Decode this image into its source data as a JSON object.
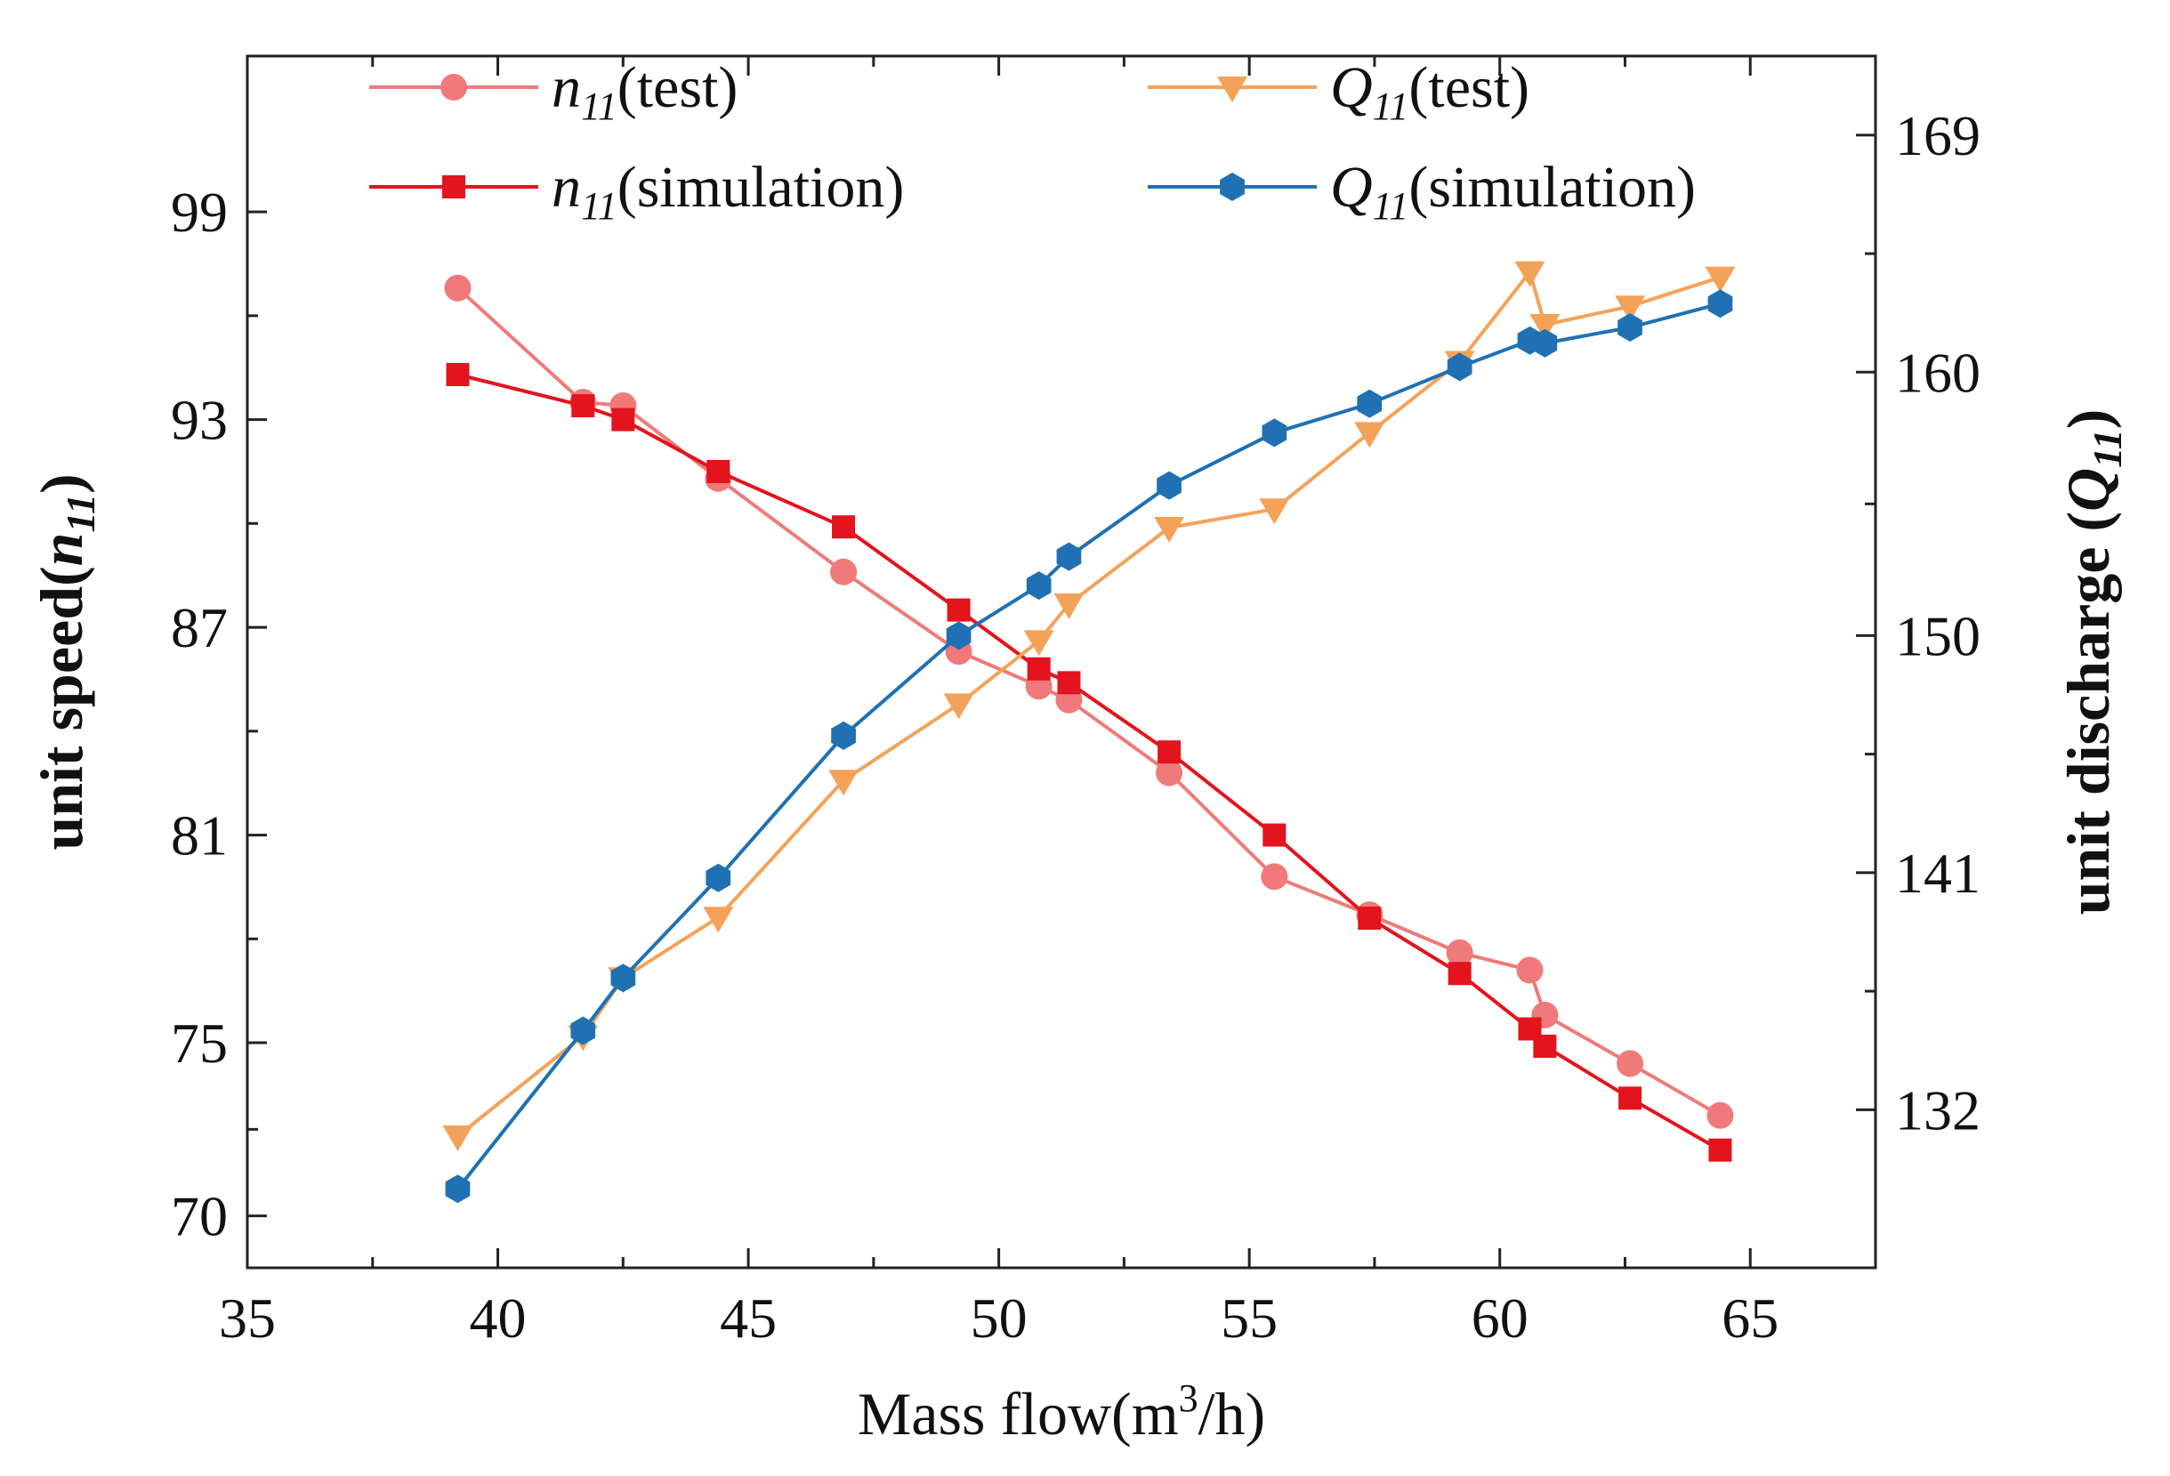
{
  "chart_data": {
    "type": "line",
    "xlabel_prefix": "Mass flow(m",
    "xlabel_sup": "3",
    "xlabel_suffix": "/h)",
    "ylabel_left_prefix": "unit speed(",
    "ylabel_left_var": "n",
    "ylabel_left_sub": "11",
    "ylabel_left_suffix": ")",
    "ylabel_right_prefix": "unit discharge (",
    "ylabel_right_var": "Q",
    "ylabel_right_sub": "11",
    "ylabel_right_suffix": ")",
    "xlim": [
      35,
      67.5
    ],
    "ylim_left": [
      68.5,
      103.5
    ],
    "ylim_right": [
      126.0,
      172.0
    ],
    "xticks": [
      35,
      40,
      45,
      50,
      55,
      60,
      65
    ],
    "yticks_left": [
      70,
      75,
      81,
      87,
      93,
      99
    ],
    "yticks_right": [
      132,
      141,
      150,
      160,
      169
    ],
    "series": [
      {
        "name": "n11(test)",
        "legend_var": "n",
        "legend_sub": "11",
        "legend_suffix": "(test)",
        "axis": "left",
        "color": "#f07a7a",
        "marker": "circle",
        "x": [
          39.2,
          41.7,
          42.5,
          44.4,
          46.9,
          49.2,
          50.8,
          51.4,
          53.4,
          55.5,
          57.4,
          59.2,
          60.6,
          60.9,
          62.6,
          64.4
        ],
        "y": [
          96.8,
          93.5,
          93.4,
          91.3,
          88.6,
          86.3,
          85.3,
          84.9,
          82.8,
          79.8,
          78.7,
          77.6,
          77.1,
          75.8,
          74.4,
          72.9
        ]
      },
      {
        "name": "n11(simulation)",
        "legend_var": "n",
        "legend_sub": "11",
        "legend_suffix": "(simulation)",
        "axis": "left",
        "color": "#e3141d",
        "marker": "square",
        "x": [
          39.2,
          41.7,
          42.5,
          44.4,
          46.9,
          49.2,
          50.8,
          51.4,
          53.4,
          55.5,
          57.4,
          59.2,
          60.6,
          60.9,
          62.6,
          64.4
        ],
        "y": [
          94.3,
          93.4,
          93.0,
          91.5,
          89.9,
          87.5,
          85.8,
          85.4,
          83.4,
          81.0,
          78.6,
          77.0,
          75.4,
          74.9,
          73.4,
          71.9
        ]
      },
      {
        "name": "Q11(test)",
        "legend_var": "Q",
        "legend_sub": "11",
        "legend_suffix": "(test)",
        "axis": "right",
        "color": "#f5a259",
        "marker": "triangle-down",
        "x": [
          39.2,
          41.7,
          42.5,
          44.4,
          46.9,
          49.2,
          50.8,
          51.4,
          53.4,
          55.5,
          57.4,
          59.2,
          60.6,
          60.9,
          62.6,
          64.4
        ],
        "y": [
          131.0,
          134.8,
          137.0,
          139.3,
          144.5,
          147.4,
          149.8,
          151.2,
          154.1,
          154.8,
          157.7,
          160.4,
          163.8,
          161.8,
          162.5,
          163.6
        ]
      },
      {
        "name": "Q11(simulation)",
        "legend_var": "Q",
        "legend_sub": "11",
        "legend_suffix": "(simulation)",
        "axis": "right",
        "color": "#1f71b3",
        "marker": "hexagon",
        "x": [
          39.2,
          41.7,
          42.5,
          44.4,
          46.9,
          49.2,
          50.8,
          51.4,
          53.4,
          55.5,
          57.4,
          59.2,
          60.6,
          60.9,
          62.6,
          64.4
        ],
        "y": [
          129.0,
          135.0,
          137.0,
          140.8,
          146.2,
          150.0,
          151.9,
          153.0,
          155.7,
          157.7,
          158.8,
          160.2,
          161.2,
          161.1,
          161.7,
          162.6
        ]
      }
    ]
  }
}
